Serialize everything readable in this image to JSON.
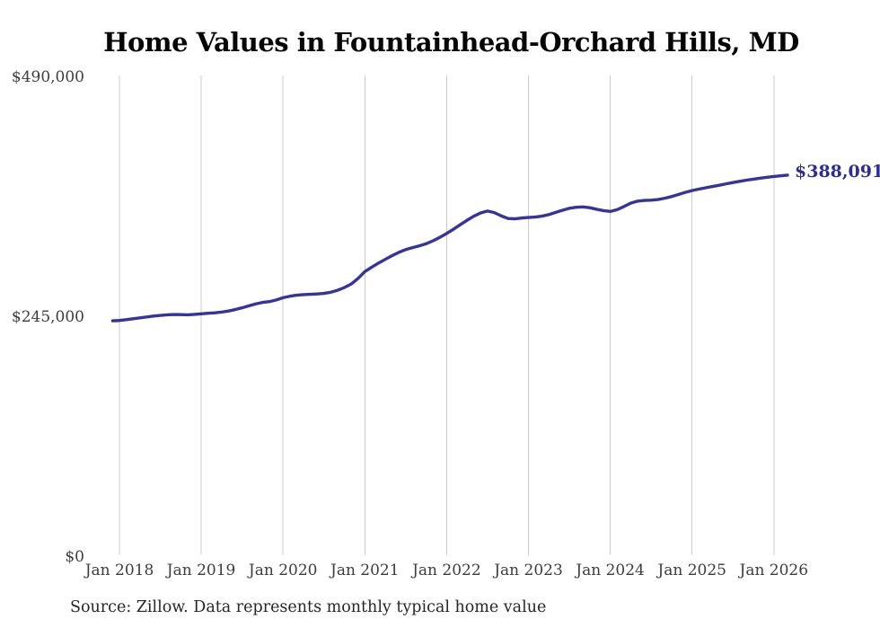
{
  "title": "Home Values in Fountainhead-Orchard Hills, MD",
  "latest_value_label": "$388,091",
  "source_note": "Source: Zillow. Data represents monthly typical home value",
  "colors": {
    "line": "#34349E",
    "latest_value_label": "#2D2D96",
    "gridline": "#CBCBCB",
    "tick_text": "#3D3D3D",
    "title_text": "#050505",
    "source_text": "#262626",
    "background": "#FFFFFF"
  },
  "chart_data": {
    "type": "line",
    "title": "Home Values in Fountainhead-Orchard Hills, MD",
    "xlabel": "",
    "ylabel": "",
    "ylim": [
      0,
      490000
    ],
    "grid": "vertical-only",
    "legend": "none",
    "frequency": "monthly",
    "start_month": "Dec 2017",
    "start_month_offset": -1,
    "end_month": "Mar 2026",
    "final_value": 388091,
    "y_ticks": [
      {
        "label": "$0",
        "value": 0
      },
      {
        "label": "$245,000",
        "value": 245000
      },
      {
        "label": "$490,000",
        "value": 490000
      }
    ],
    "x_ticks": [
      {
        "label": "Jan 2018",
        "month_index": 0
      },
      {
        "label": "Jan 2019",
        "month_index": 12
      },
      {
        "label": "Jan 2020",
        "month_index": 24
      },
      {
        "label": "Jan 2021",
        "month_index": 36
      },
      {
        "label": "Jan 2022",
        "month_index": 48
      },
      {
        "label": "Jan 2023",
        "month_index": 60
      },
      {
        "label": "Jan 2024",
        "month_index": 72
      },
      {
        "label": "Jan 2025",
        "month_index": 84
      },
      {
        "label": "Jan 2026",
        "month_index": 96
      }
    ],
    "series": [
      {
        "name": "Typical home value (USD)",
        "values": [
          239200,
          239500,
          240400,
          241300,
          242200,
          243100,
          244000,
          244700,
          245300,
          245600,
          245500,
          245300,
          245700,
          246300,
          246900,
          247400,
          248100,
          249200,
          250700,
          252500,
          254500,
          256500,
          258000,
          258800,
          260500,
          262800,
          264300,
          265400,
          266000,
          266300,
          266600,
          267200,
          268400,
          270400,
          273200,
          276800,
          282500,
          289500,
          294000,
          298200,
          302000,
          305800,
          309200,
          312000,
          314000,
          315800,
          318000,
          321000,
          324500,
          328500,
          332800,
          337500,
          342000,
          346200,
          349500,
          351400,
          349800,
          346500,
          343800,
          343500,
          344300,
          344800,
          345300,
          346200,
          347800,
          350000,
          352200,
          354200,
          355300,
          355600,
          354800,
          353200,
          351800,
          351000,
          352800,
          356000,
          359500,
          361500,
          362300,
          362500,
          363200,
          364500,
          366200,
          368300,
          370500,
          372300,
          373800,
          375200,
          376500,
          377800,
          379200,
          380500,
          381800,
          383000,
          384000,
          385000,
          385900,
          386700,
          387400,
          388091
        ]
      }
    ]
  }
}
